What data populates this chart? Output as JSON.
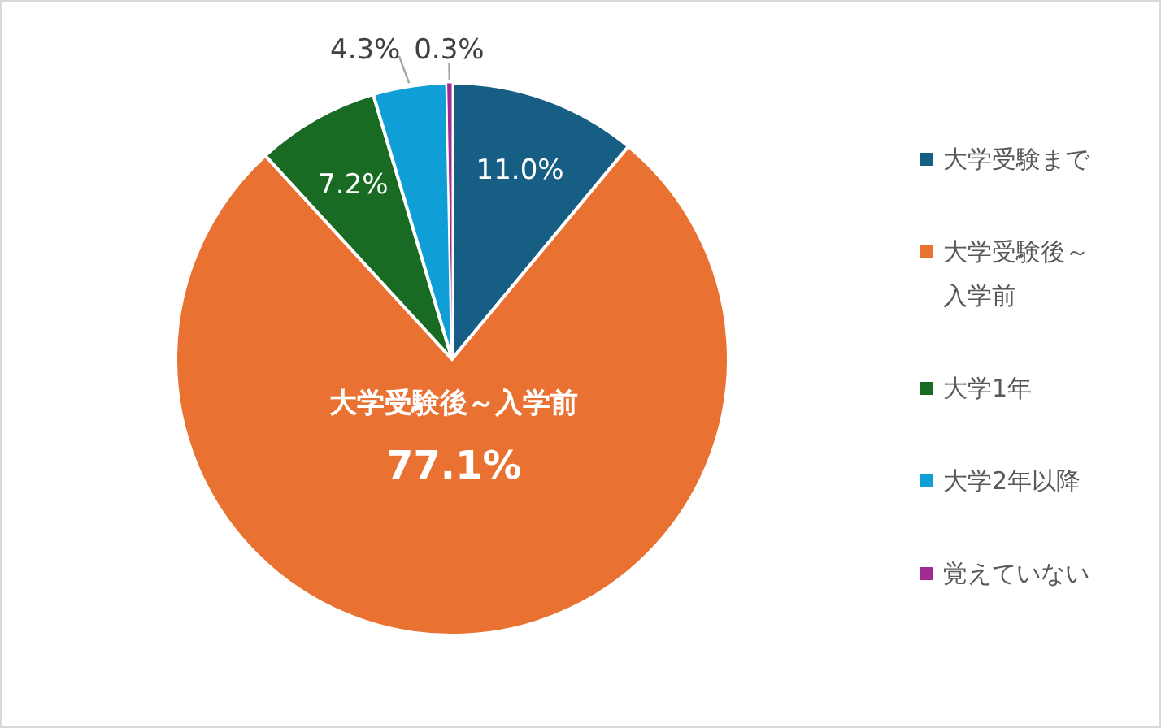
{
  "chart_data": {
    "type": "pie",
    "categories": [
      "大学受験まで",
      "大学受験後～入学前",
      "大学1年",
      "大学2年以降",
      "覚えていない"
    ],
    "values": [
      11.0,
      77.1,
      7.2,
      4.3,
      0.3
    ],
    "colors": [
      "#175e84",
      "#e97132",
      "#196b24",
      "#0f9ed5",
      "#a02b93"
    ],
    "value_labels": [
      "11.0%",
      "大学受験後～入学前\n77.1%",
      "7.2%",
      "4.3%",
      "0.3%"
    ],
    "legend": "right"
  }
}
